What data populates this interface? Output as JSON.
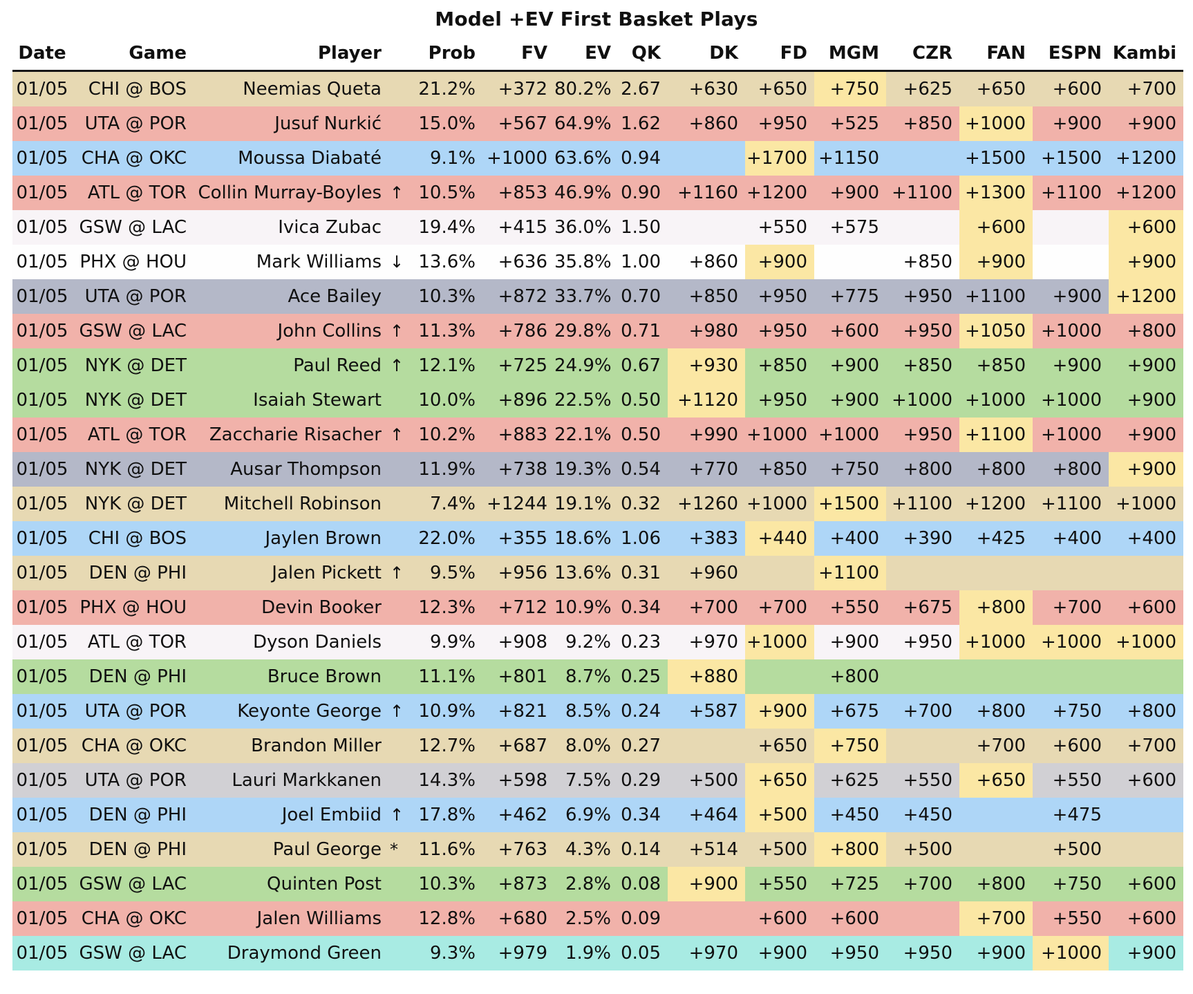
{
  "chart_data": {
    "type": "table",
    "title": "Model +EV First Basket Plays",
    "columns": [
      {
        "key": "date",
        "label": "Date"
      },
      {
        "key": "game",
        "label": "Game"
      },
      {
        "key": "player",
        "label": "Player"
      },
      {
        "key": "arrow",
        "label": ""
      },
      {
        "key": "prob",
        "label": "Prob"
      },
      {
        "key": "fv",
        "label": "FV"
      },
      {
        "key": "ev",
        "label": "EV"
      },
      {
        "key": "qk",
        "label": "QK"
      },
      {
        "key": "dk",
        "label": "DK"
      },
      {
        "key": "fd",
        "label": "FD"
      },
      {
        "key": "mgm",
        "label": "MGM"
      },
      {
        "key": "czr",
        "label": "CZR"
      },
      {
        "key": "fan",
        "label": "FAN"
      },
      {
        "key": "espn",
        "label": "ESPN"
      },
      {
        "key": "kambi",
        "label": "Kambi"
      }
    ],
    "colors": {
      "tan": "#e7d9b3",
      "red": "#f1b2aa",
      "blue": "#aed6f7",
      "green": "#b5dc9f",
      "grayblue": "#b4b8c8",
      "lightgray": "#d1d0d4",
      "lavender": "#f8f4f7",
      "white": "#fefefe",
      "cyan": "#a8ebe3",
      "highlight": "#fbe7a4",
      "text": "#101010",
      "header_rule": "#161616"
    },
    "rows": [
      {
        "date": "01/05",
        "game": "CHI @ BOS",
        "player": "Neemias Queta",
        "arrow": "",
        "prob": "21.2%",
        "fv": "+372",
        "ev": "80.2%",
        "qk": "2.67",
        "dk": "+630",
        "fd": "+650",
        "mgm": "+750",
        "czr": "+625",
        "fan": "+650",
        "espn": "+600",
        "kambi": "+700",
        "bg": "tan",
        "best": [
          "mgm"
        ]
      },
      {
        "date": "01/05",
        "game": "UTA @ POR",
        "player": "Jusuf Nurkić",
        "arrow": "",
        "prob": "15.0%",
        "fv": "+567",
        "ev": "64.9%",
        "qk": "1.62",
        "dk": "+860",
        "fd": "+950",
        "mgm": "+525",
        "czr": "+850",
        "fan": "+1000",
        "espn": "+900",
        "kambi": "+900",
        "bg": "red",
        "best": [
          "fan"
        ]
      },
      {
        "date": "01/05",
        "game": "CHA @ OKC",
        "player": "Moussa Diabaté",
        "arrow": "",
        "prob": "9.1%",
        "fv": "+1000",
        "ev": "63.6%",
        "qk": "0.94",
        "dk": "",
        "fd": "+1700",
        "mgm": "+1150",
        "czr": "",
        "fan": "+1500",
        "espn": "+1500",
        "kambi": "+1200",
        "bg": "blue",
        "best": [
          "fd"
        ]
      },
      {
        "date": "01/05",
        "game": "ATL @ TOR",
        "player": "Collin Murray-Boyles",
        "arrow": "↑",
        "prob": "10.5%",
        "fv": "+853",
        "ev": "46.9%",
        "qk": "0.90",
        "dk": "+1160",
        "fd": "+1200",
        "mgm": "+900",
        "czr": "+1100",
        "fan": "+1300",
        "espn": "+1100",
        "kambi": "+1200",
        "bg": "red",
        "best": [
          "fan"
        ]
      },
      {
        "date": "01/05",
        "game": "GSW @ LAC",
        "player": "Ivica Zubac",
        "arrow": "",
        "prob": "19.4%",
        "fv": "+415",
        "ev": "36.0%",
        "qk": "1.50",
        "dk": "",
        "fd": "+550",
        "mgm": "+575",
        "czr": "",
        "fan": "+600",
        "espn": "",
        "kambi": "+600",
        "bg": "lavender",
        "best": [
          "fan",
          "kambi"
        ]
      },
      {
        "date": "01/05",
        "game": "PHX @ HOU",
        "player": "Mark Williams",
        "arrow": "↓",
        "prob": "13.6%",
        "fv": "+636",
        "ev": "35.8%",
        "qk": "1.00",
        "dk": "+860",
        "fd": "+900",
        "mgm": "",
        "czr": "+850",
        "fan": "+900",
        "espn": "",
        "kambi": "+900",
        "bg": "white",
        "best": [
          "fd",
          "fan",
          "kambi"
        ]
      },
      {
        "date": "01/05",
        "game": "UTA @ POR",
        "player": "Ace Bailey",
        "arrow": "",
        "prob": "10.3%",
        "fv": "+872",
        "ev": "33.7%",
        "qk": "0.70",
        "dk": "+850",
        "fd": "+950",
        "mgm": "+775",
        "czr": "+950",
        "fan": "+1100",
        "espn": "+900",
        "kambi": "+1200",
        "bg": "grayblue",
        "best": [
          "kambi"
        ]
      },
      {
        "date": "01/05",
        "game": "GSW @ LAC",
        "player": "John Collins",
        "arrow": "↑",
        "prob": "11.3%",
        "fv": "+786",
        "ev": "29.8%",
        "qk": "0.71",
        "dk": "+980",
        "fd": "+950",
        "mgm": "+600",
        "czr": "+950",
        "fan": "+1050",
        "espn": "+1000",
        "kambi": "+800",
        "bg": "red",
        "best": [
          "fan"
        ]
      },
      {
        "date": "01/05",
        "game": "NYK @ DET",
        "player": "Paul Reed",
        "arrow": "↑",
        "prob": "12.1%",
        "fv": "+725",
        "ev": "24.9%",
        "qk": "0.67",
        "dk": "+930",
        "fd": "+850",
        "mgm": "+900",
        "czr": "+850",
        "fan": "+850",
        "espn": "+900",
        "kambi": "+900",
        "bg": "green",
        "best": [
          "dk"
        ]
      },
      {
        "date": "01/05",
        "game": "NYK @ DET",
        "player": "Isaiah Stewart",
        "arrow": "",
        "prob": "10.0%",
        "fv": "+896",
        "ev": "22.5%",
        "qk": "0.50",
        "dk": "+1120",
        "fd": "+950",
        "mgm": "+900",
        "czr": "+1000",
        "fan": "+1000",
        "espn": "+1000",
        "kambi": "+900",
        "bg": "green",
        "best": [
          "dk"
        ]
      },
      {
        "date": "01/05",
        "game": "ATL @ TOR",
        "player": "Zaccharie Risacher",
        "arrow": "↑",
        "prob": "10.2%",
        "fv": "+883",
        "ev": "22.1%",
        "qk": "0.50",
        "dk": "+990",
        "fd": "+1000",
        "mgm": "+1000",
        "czr": "+950",
        "fan": "+1100",
        "espn": "+1000",
        "kambi": "+900",
        "bg": "red",
        "best": [
          "fan"
        ]
      },
      {
        "date": "01/05",
        "game": "NYK @ DET",
        "player": "Ausar Thompson",
        "arrow": "",
        "prob": "11.9%",
        "fv": "+738",
        "ev": "19.3%",
        "qk": "0.54",
        "dk": "+770",
        "fd": "+850",
        "mgm": "+750",
        "czr": "+800",
        "fan": "+800",
        "espn": "+800",
        "kambi": "+900",
        "bg": "grayblue",
        "best": [
          "kambi"
        ]
      },
      {
        "date": "01/05",
        "game": "NYK @ DET",
        "player": "Mitchell Robinson",
        "arrow": "",
        "prob": "7.4%",
        "fv": "+1244",
        "ev": "19.1%",
        "qk": "0.32",
        "dk": "+1260",
        "fd": "+1000",
        "mgm": "+1500",
        "czr": "+1100",
        "fan": "+1200",
        "espn": "+1100",
        "kambi": "+1000",
        "bg": "tan",
        "best": [
          "mgm"
        ]
      },
      {
        "date": "01/05",
        "game": "CHI @ BOS",
        "player": "Jaylen Brown",
        "arrow": "",
        "prob": "22.0%",
        "fv": "+355",
        "ev": "18.6%",
        "qk": "1.06",
        "dk": "+383",
        "fd": "+440",
        "mgm": "+400",
        "czr": "+390",
        "fan": "+425",
        "espn": "+400",
        "kambi": "+400",
        "bg": "blue",
        "best": [
          "fd"
        ]
      },
      {
        "date": "01/05",
        "game": "DEN @ PHI",
        "player": "Jalen Pickett",
        "arrow": "↑",
        "prob": "9.5%",
        "fv": "+956",
        "ev": "13.6%",
        "qk": "0.31",
        "dk": "+960",
        "fd": "",
        "mgm": "+1100",
        "czr": "",
        "fan": "",
        "espn": "",
        "kambi": "",
        "bg": "tan",
        "best": [
          "mgm"
        ]
      },
      {
        "date": "01/05",
        "game": "PHX @ HOU",
        "player": "Devin Booker",
        "arrow": "",
        "prob": "12.3%",
        "fv": "+712",
        "ev": "10.9%",
        "qk": "0.34",
        "dk": "+700",
        "fd": "+700",
        "mgm": "+550",
        "czr": "+675",
        "fan": "+800",
        "espn": "+700",
        "kambi": "+600",
        "bg": "red",
        "best": [
          "fan"
        ]
      },
      {
        "date": "01/05",
        "game": "ATL @ TOR",
        "player": "Dyson Daniels",
        "arrow": "",
        "prob": "9.9%",
        "fv": "+908",
        "ev": "9.2%",
        "qk": "0.23",
        "dk": "+970",
        "fd": "+1000",
        "mgm": "+900",
        "czr": "+950",
        "fan": "+1000",
        "espn": "+1000",
        "kambi": "+1000",
        "bg": "lavender",
        "best": [
          "fd",
          "fan",
          "espn",
          "kambi"
        ]
      },
      {
        "date": "01/05",
        "game": "DEN @ PHI",
        "player": "Bruce Brown",
        "arrow": "",
        "prob": "11.1%",
        "fv": "+801",
        "ev": "8.7%",
        "qk": "0.25",
        "dk": "+880",
        "fd": "",
        "mgm": "+800",
        "czr": "",
        "fan": "",
        "espn": "",
        "kambi": "",
        "bg": "green",
        "best": [
          "dk"
        ]
      },
      {
        "date": "01/05",
        "game": "UTA @ POR",
        "player": "Keyonte George",
        "arrow": "↑",
        "prob": "10.9%",
        "fv": "+821",
        "ev": "8.5%",
        "qk": "0.24",
        "dk": "+587",
        "fd": "+900",
        "mgm": "+675",
        "czr": "+700",
        "fan": "+800",
        "espn": "+750",
        "kambi": "+800",
        "bg": "blue",
        "best": [
          "fd"
        ]
      },
      {
        "date": "01/05",
        "game": "CHA @ OKC",
        "player": "Brandon Miller",
        "arrow": "",
        "prob": "12.7%",
        "fv": "+687",
        "ev": "8.0%",
        "qk": "0.27",
        "dk": "",
        "fd": "+650",
        "mgm": "+750",
        "czr": "",
        "fan": "+700",
        "espn": "+600",
        "kambi": "+700",
        "bg": "tan",
        "best": [
          "mgm"
        ]
      },
      {
        "date": "01/05",
        "game": "UTA @ POR",
        "player": "Lauri Markkanen",
        "arrow": "",
        "prob": "14.3%",
        "fv": "+598",
        "ev": "7.5%",
        "qk": "0.29",
        "dk": "+500",
        "fd": "+650",
        "mgm": "+625",
        "czr": "+550",
        "fan": "+650",
        "espn": "+550",
        "kambi": "+600",
        "bg": "lightgray",
        "best": [
          "fd",
          "fan"
        ]
      },
      {
        "date": "01/05",
        "game": "DEN @ PHI",
        "player": "Joel Embiid",
        "arrow": "↑",
        "prob": "17.8%",
        "fv": "+462",
        "ev": "6.9%",
        "qk": "0.34",
        "dk": "+464",
        "fd": "+500",
        "mgm": "+450",
        "czr": "+450",
        "fan": "",
        "espn": "+475",
        "kambi": "",
        "bg": "blue",
        "best": [
          "fd"
        ]
      },
      {
        "date": "01/05",
        "game": "DEN @ PHI",
        "player": "Paul George",
        "arrow": "*",
        "prob": "11.6%",
        "fv": "+763",
        "ev": "4.3%",
        "qk": "0.14",
        "dk": "+514",
        "fd": "+500",
        "mgm": "+800",
        "czr": "+500",
        "fan": "",
        "espn": "+500",
        "kambi": "",
        "bg": "tan",
        "best": [
          "mgm"
        ]
      },
      {
        "date": "01/05",
        "game": "GSW @ LAC",
        "player": "Quinten Post",
        "arrow": "",
        "prob": "10.3%",
        "fv": "+873",
        "ev": "2.8%",
        "qk": "0.08",
        "dk": "+900",
        "fd": "+550",
        "mgm": "+725",
        "czr": "+700",
        "fan": "+800",
        "espn": "+750",
        "kambi": "+600",
        "bg": "green",
        "best": [
          "dk"
        ]
      },
      {
        "date": "01/05",
        "game": "CHA @ OKC",
        "player": "Jalen Williams",
        "arrow": "",
        "prob": "12.8%",
        "fv": "+680",
        "ev": "2.5%",
        "qk": "0.09",
        "dk": "",
        "fd": "+600",
        "mgm": "+600",
        "czr": "",
        "fan": "+700",
        "espn": "+550",
        "kambi": "+600",
        "bg": "red",
        "best": [
          "fan"
        ]
      },
      {
        "date": "01/05",
        "game": "GSW @ LAC",
        "player": "Draymond Green",
        "arrow": "",
        "prob": "9.3%",
        "fv": "+979",
        "ev": "1.9%",
        "qk": "0.05",
        "dk": "+970",
        "fd": "+900",
        "mgm": "+950",
        "czr": "+950",
        "fan": "+900",
        "espn": "+1000",
        "kambi": "+900",
        "bg": "cyan",
        "best": [
          "espn"
        ]
      }
    ]
  }
}
